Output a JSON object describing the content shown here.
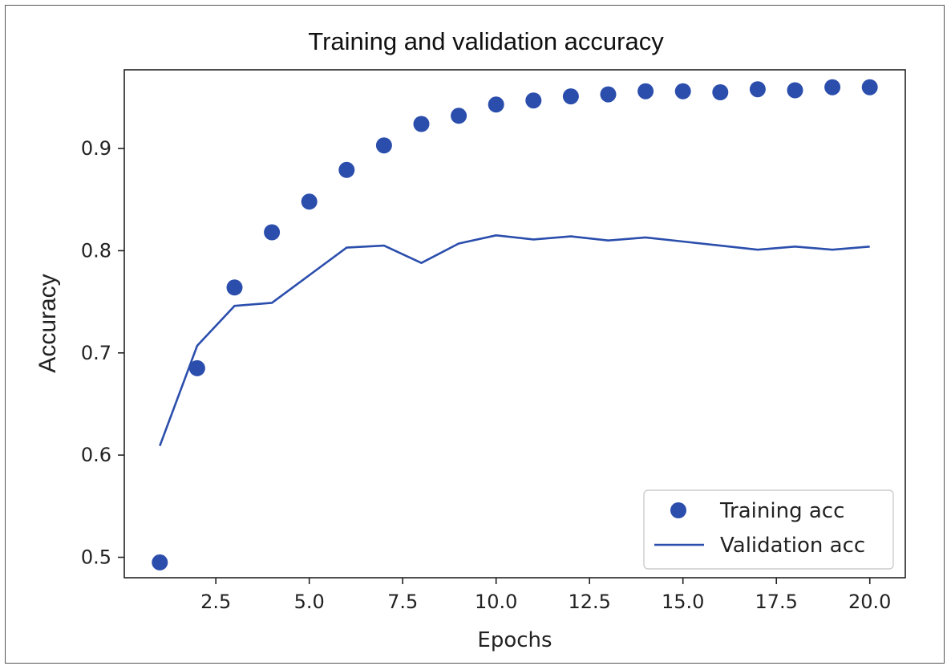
{
  "chart_data": {
    "type": "scatter",
    "title": "Training and validation accuracy",
    "xlabel": "Epochs",
    "ylabel": "Accuracy",
    "xlim": [
      0.05,
      20.95
    ],
    "ylim": [
      0.48,
      0.977
    ],
    "xticks": [
      2.5,
      5.0,
      7.5,
      10.0,
      12.5,
      15.0,
      17.5,
      20.0
    ],
    "xtick_labels": [
      "2.5",
      "5.0",
      "7.5",
      "10.0",
      "12.5",
      "15.0",
      "17.5",
      "20.0"
    ],
    "yticks": [
      0.5,
      0.6,
      0.7,
      0.8,
      0.9
    ],
    "ytick_labels": [
      "0.5",
      "0.6",
      "0.7",
      "0.8",
      "0.9"
    ],
    "grid": false,
    "legend_position": "lower-right",
    "x": [
      1,
      2,
      3,
      4,
      5,
      6,
      7,
      8,
      9,
      10,
      11,
      12,
      13,
      14,
      15,
      16,
      17,
      18,
      19,
      20
    ],
    "series": [
      {
        "name": "Training acc",
        "style": "markers",
        "color": "#2b4ead",
        "values": [
          0.495,
          0.685,
          0.764,
          0.818,
          0.848,
          0.879,
          0.903,
          0.924,
          0.932,
          0.943,
          0.947,
          0.951,
          0.953,
          0.956,
          0.956,
          0.955,
          0.958,
          0.957,
          0.96,
          0.96
        ]
      },
      {
        "name": "Validation acc",
        "style": "line",
        "color": "#2b4ead",
        "values": [
          0.609,
          0.707,
          0.746,
          0.749,
          0.776,
          0.803,
          0.805,
          0.788,
          0.807,
          0.815,
          0.811,
          0.814,
          0.81,
          0.813,
          0.809,
          0.805,
          0.801,
          0.804,
          0.801,
          0.804
        ]
      }
    ]
  }
}
